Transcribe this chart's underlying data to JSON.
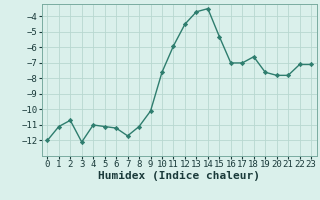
{
  "x": [
    0,
    1,
    2,
    3,
    4,
    5,
    6,
    7,
    8,
    9,
    10,
    11,
    12,
    13,
    14,
    15,
    16,
    17,
    18,
    19,
    20,
    21,
    22,
    23
  ],
  "y": [
    -12.0,
    -11.1,
    -10.7,
    -12.1,
    -11.0,
    -11.1,
    -11.2,
    -11.7,
    -11.1,
    -10.1,
    -7.6,
    -5.9,
    -4.5,
    -3.7,
    -3.5,
    -5.3,
    -7.0,
    -7.0,
    -6.6,
    -7.6,
    -7.8,
    -7.8,
    -7.1,
    -7.1
  ],
  "line_color": "#2e7d6e",
  "marker": "D",
  "marker_size": 2.2,
  "bg_color": "#daf0eb",
  "grid_color": "#b8d8d0",
  "xlabel": "Humidex (Indice chaleur)",
  "xlim": [
    -0.5,
    23.5
  ],
  "ylim": [
    -13,
    -3.2
  ],
  "yticks": [
    -12,
    -11,
    -10,
    -9,
    -8,
    -7,
    -6,
    -5,
    -4
  ],
  "xticks": [
    0,
    1,
    2,
    3,
    4,
    5,
    6,
    7,
    8,
    9,
    10,
    11,
    12,
    13,
    14,
    15,
    16,
    17,
    18,
    19,
    20,
    21,
    22,
    23
  ],
  "tick_label_fontsize": 6.5,
  "xlabel_fontsize": 8,
  "line_width": 1.0
}
